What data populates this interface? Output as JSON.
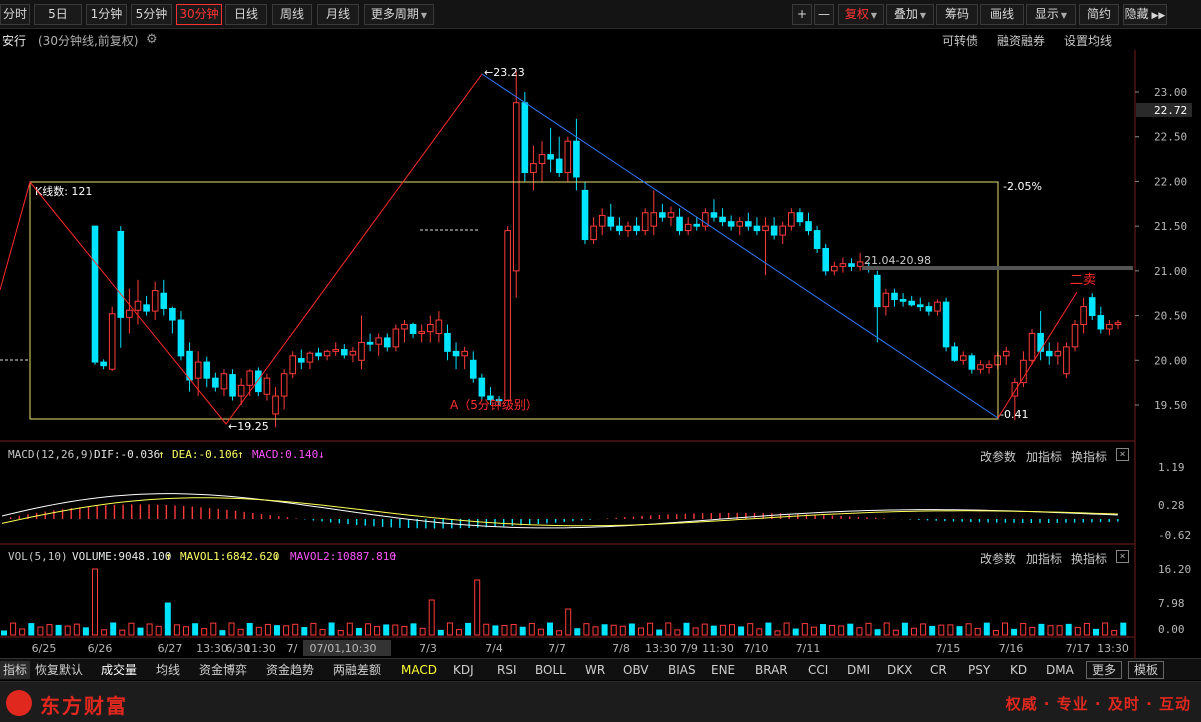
{
  "toolbar": {
    "left": [
      "分时",
      "5日",
      "1分钟",
      "5分钟",
      "30分钟",
      "日线",
      "周线",
      "月线",
      "更多周期"
    ],
    "right": [
      "+",
      "—",
      "复权",
      "叠加",
      "筹码",
      "画线",
      "显示",
      "简约",
      "隐藏"
    ]
  },
  "title": {
    "stock": "安行",
    "mode": "(30分钟线,前复权)",
    "links": [
      "可转债",
      "融资融券",
      "设置均线"
    ]
  },
  "price_axis": [
    "23.00",
    "22.50",
    "22.00",
    "21.50",
    "21.00",
    "20.50",
    "20.00",
    "19.50"
  ],
  "current_price": "22.72",
  "annotations": {
    "high": "23.23",
    "low": "19.25",
    "box_count": "K线数: 121",
    "box_pct": "-2.05%",
    "range": "21.04-20.98",
    "right_low": "-0.41",
    "sell_label": "二卖",
    "a_label": "A（5分钟级别）"
  },
  "macd": {
    "label": "MACD(12,26,9)",
    "dif": "DIF:-0.036",
    "dea": "DEA:-0.106",
    "macd": "MACD:0.140",
    "axis": [
      "1.19",
      "0.28",
      "-0.62"
    ]
  },
  "vol": {
    "label": "VOL(5,10)",
    "volume": "VOLUME:9048.100",
    "mavol1": "MAVOL1:6842.620",
    "mavol2": "MAVOL2:10887.810",
    "axis": [
      "16.20",
      "7.98",
      "0.00"
    ]
  },
  "indicator_actions": [
    "改参数",
    "加指标",
    "换指标"
  ],
  "date_axis": [
    "6/25",
    "6/26",
    "6/27",
    "13:30",
    "6/30",
    "11:30",
    "7/",
    "07/01,10:30",
    "7/3",
    "7/4",
    "7/7",
    "7/8",
    "13:30",
    "7/9",
    "11:30",
    "7/10",
    "7/11",
    "7/15",
    "7/16",
    "7/17",
    "13:30"
  ],
  "tabs": [
    "指标",
    "恢复默认",
    "成交量",
    "均线",
    "资金博弈",
    "资金趋势",
    "两融差额",
    "MACD",
    "KDJ",
    "RSI",
    "BOLL",
    "WR",
    "OBV",
    "BIAS",
    "ENE",
    "BRAR",
    "CCI",
    "DMI",
    "DKX",
    "CR",
    "PSY",
    "KD",
    "DMA",
    "更多",
    "模板"
  ],
  "footer": {
    "logo": "东方财富",
    "slogan": "权威 · 专业 · 及时 · 互动"
  },
  "colors": {
    "up": "#ff3b3b",
    "down": "#00e5ff",
    "box": "#e8e070",
    "trend_up": "#ff2a2a",
    "trend_down": "#2e7dff",
    "axis": "#aaaaaa"
  },
  "chart_data": {
    "type": "candlestick",
    "x_label": "",
    "y_range": [
      19.25,
      23.23
    ],
    "candles": [
      [
        21.5,
        21.5,
        19.95,
        19.98
      ],
      [
        19.98,
        20.01,
        19.9,
        19.94
      ],
      [
        19.9,
        20.6,
        19.88,
        20.52
      ],
      [
        21.44,
        21.5,
        20.14,
        20.48
      ],
      [
        20.48,
        20.8,
        20.3,
        20.56
      ],
      [
        20.56,
        20.9,
        20.4,
        20.66
      ],
      [
        20.62,
        20.72,
        20.5,
        20.55
      ],
      [
        20.55,
        20.88,
        20.45,
        20.78
      ],
      [
        20.75,
        20.9,
        20.5,
        20.58
      ],
      [
        20.58,
        20.6,
        20.3,
        20.45
      ],
      [
        20.45,
        20.55,
        20.0,
        20.05
      ],
      [
        20.1,
        20.2,
        19.65,
        19.78
      ],
      [
        19.8,
        20.1,
        19.6,
        19.98
      ],
      [
        19.98,
        20.04,
        19.7,
        19.8
      ],
      [
        19.8,
        19.86,
        19.65,
        19.7
      ],
      [
        19.68,
        19.9,
        19.6,
        19.85
      ],
      [
        19.84,
        19.9,
        19.55,
        19.6
      ],
      [
        19.6,
        19.8,
        19.5,
        19.72
      ],
      [
        19.72,
        19.9,
        19.6,
        19.88
      ],
      [
        19.88,
        19.92,
        19.6,
        19.65
      ],
      [
        19.62,
        19.85,
        19.55,
        19.8
      ],
      [
        19.4,
        19.7,
        19.25,
        19.6
      ],
      [
        19.6,
        19.9,
        19.45,
        19.85
      ],
      [
        19.85,
        20.1,
        19.8,
        20.05
      ],
      [
        20.02,
        20.12,
        19.9,
        19.98
      ],
      [
        19.98,
        20.1,
        19.9,
        20.08
      ],
      [
        20.08,
        20.14,
        20.0,
        20.05
      ],
      [
        20.05,
        20.12,
        20.0,
        20.1
      ],
      [
        20.1,
        20.2,
        20.05,
        20.12
      ],
      [
        20.12,
        20.18,
        20.02,
        20.06
      ],
      [
        20.06,
        20.15,
        19.98,
        20.1
      ],
      [
        20.0,
        20.5,
        19.9,
        20.2
      ],
      [
        20.2,
        20.3,
        20.1,
        20.18
      ],
      [
        20.18,
        20.3,
        20.05,
        20.25
      ],
      [
        20.25,
        20.3,
        20.1,
        20.15
      ],
      [
        20.15,
        20.4,
        20.1,
        20.35
      ],
      [
        20.35,
        20.45,
        20.2,
        20.4
      ],
      [
        20.4,
        20.42,
        20.25,
        20.3
      ],
      [
        20.3,
        20.4,
        20.2,
        20.32
      ],
      [
        20.32,
        20.5,
        20.2,
        20.4
      ],
      [
        20.3,
        20.55,
        20.2,
        20.45
      ],
      [
        20.3,
        20.4,
        20.0,
        20.1
      ],
      [
        20.1,
        20.2,
        19.9,
        20.05
      ],
      [
        20.05,
        20.15,
        19.9,
        20.1
      ],
      [
        20.0,
        20.1,
        19.75,
        19.8
      ],
      [
        19.8,
        19.85,
        19.55,
        19.6
      ],
      [
        19.6,
        19.7,
        19.5,
        19.56
      ],
      [
        19.56,
        19.6,
        19.5,
        19.55
      ],
      [
        19.55,
        21.5,
        19.55,
        21.45
      ],
      [
        21.0,
        23.23,
        20.7,
        22.88
      ],
      [
        22.88,
        23.0,
        22.0,
        22.1
      ],
      [
        22.1,
        22.4,
        21.9,
        22.2
      ],
      [
        22.2,
        22.45,
        22.0,
        22.3
      ],
      [
        22.3,
        22.6,
        22.1,
        22.25
      ],
      [
        22.25,
        22.5,
        22.05,
        22.1
      ],
      [
        22.1,
        22.5,
        22.0,
        22.45
      ],
      [
        22.45,
        22.7,
        21.9,
        22.05
      ],
      [
        21.9,
        22.0,
        21.3,
        21.35
      ],
      [
        21.35,
        21.6,
        21.3,
        21.5
      ],
      [
        21.5,
        21.7,
        21.4,
        21.62
      ],
      [
        21.6,
        21.75,
        21.45,
        21.5
      ],
      [
        21.5,
        21.6,
        21.4,
        21.45
      ],
      [
        21.45,
        21.55,
        21.38,
        21.5
      ],
      [
        21.5,
        21.6,
        21.4,
        21.45
      ],
      [
        21.45,
        21.7,
        21.4,
        21.65
      ],
      [
        21.5,
        21.9,
        21.4,
        21.65
      ],
      [
        21.65,
        21.75,
        21.55,
        21.6
      ],
      [
        21.6,
        21.72,
        21.5,
        21.65
      ],
      [
        21.6,
        21.7,
        21.4,
        21.45
      ],
      [
        21.45,
        21.6,
        21.4,
        21.52
      ],
      [
        21.52,
        21.6,
        21.45,
        21.5
      ],
      [
        21.5,
        21.7,
        21.45,
        21.65
      ],
      [
        21.65,
        21.8,
        21.55,
        21.6
      ],
      [
        21.6,
        21.7,
        21.5,
        21.55
      ],
      [
        21.55,
        21.62,
        21.45,
        21.5
      ],
      [
        21.5,
        21.6,
        21.4,
        21.55
      ],
      [
        21.55,
        21.65,
        21.45,
        21.5
      ],
      [
        21.5,
        21.6,
        21.4,
        21.45
      ],
      [
        21.45,
        21.6,
        20.95,
        21.5
      ],
      [
        21.5,
        21.6,
        21.35,
        21.4
      ],
      [
        21.4,
        21.55,
        21.3,
        21.5
      ],
      [
        21.5,
        21.7,
        21.45,
        21.65
      ],
      [
        21.65,
        21.7,
        21.5,
        21.55
      ],
      [
        21.55,
        21.65,
        21.4,
        21.45
      ],
      [
        21.45,
        21.5,
        21.2,
        21.25
      ],
      [
        21.25,
        21.3,
        20.95,
        21.0
      ],
      [
        21.0,
        21.1,
        20.95,
        21.05
      ],
      [
        21.05,
        21.15,
        20.98,
        21.08
      ],
      [
        21.08,
        21.14,
        21.0,
        21.05
      ],
      [
        21.05,
        21.2,
        21.0,
        21.1
      ],
      [
        21.04,
        21.1,
        20.98,
        21.02
      ],
      [
        20.95,
        21.0,
        20.2,
        20.6
      ],
      [
        20.6,
        20.8,
        20.5,
        20.75
      ],
      [
        20.75,
        20.8,
        20.6,
        20.68
      ],
      [
        20.68,
        20.75,
        20.6,
        20.66
      ],
      [
        20.66,
        20.72,
        20.6,
        20.62
      ],
      [
        20.62,
        20.7,
        20.55,
        20.6
      ],
      [
        20.6,
        20.65,
        20.5,
        20.55
      ],
      [
        20.55,
        20.68,
        20.5,
        20.65
      ],
      [
        20.65,
        20.7,
        20.1,
        20.15
      ],
      [
        20.15,
        20.2,
        19.98,
        20.0
      ],
      [
        20.0,
        20.1,
        19.95,
        20.05
      ],
      [
        20.05,
        20.08,
        19.85,
        19.9
      ],
      [
        19.9,
        20.0,
        19.85,
        19.95
      ],
      [
        19.92,
        20.0,
        19.85,
        19.95
      ],
      [
        19.95,
        20.1,
        19.9,
        20.05
      ],
      [
        20.05,
        20.15,
        19.95,
        20.1
      ],
      [
        19.6,
        19.8,
        19.33,
        19.75
      ],
      [
        19.75,
        20.1,
        19.7,
        20.0
      ],
      [
        20.0,
        20.35,
        19.95,
        20.3
      ],
      [
        20.3,
        20.55,
        20.0,
        20.1
      ],
      [
        20.1,
        20.2,
        19.95,
        20.05
      ],
      [
        20.05,
        20.2,
        19.95,
        20.1
      ],
      [
        19.85,
        20.2,
        19.8,
        20.15
      ],
      [
        20.15,
        20.45,
        20.1,
        20.4
      ],
      [
        20.4,
        20.7,
        20.3,
        20.6
      ],
      [
        20.7,
        20.75,
        20.45,
        20.5
      ],
      [
        20.5,
        20.6,
        20.3,
        20.35
      ],
      [
        20.35,
        20.45,
        20.28,
        20.4
      ],
      [
        20.4,
        20.45,
        20.35,
        20.42
      ]
    ]
  }
}
